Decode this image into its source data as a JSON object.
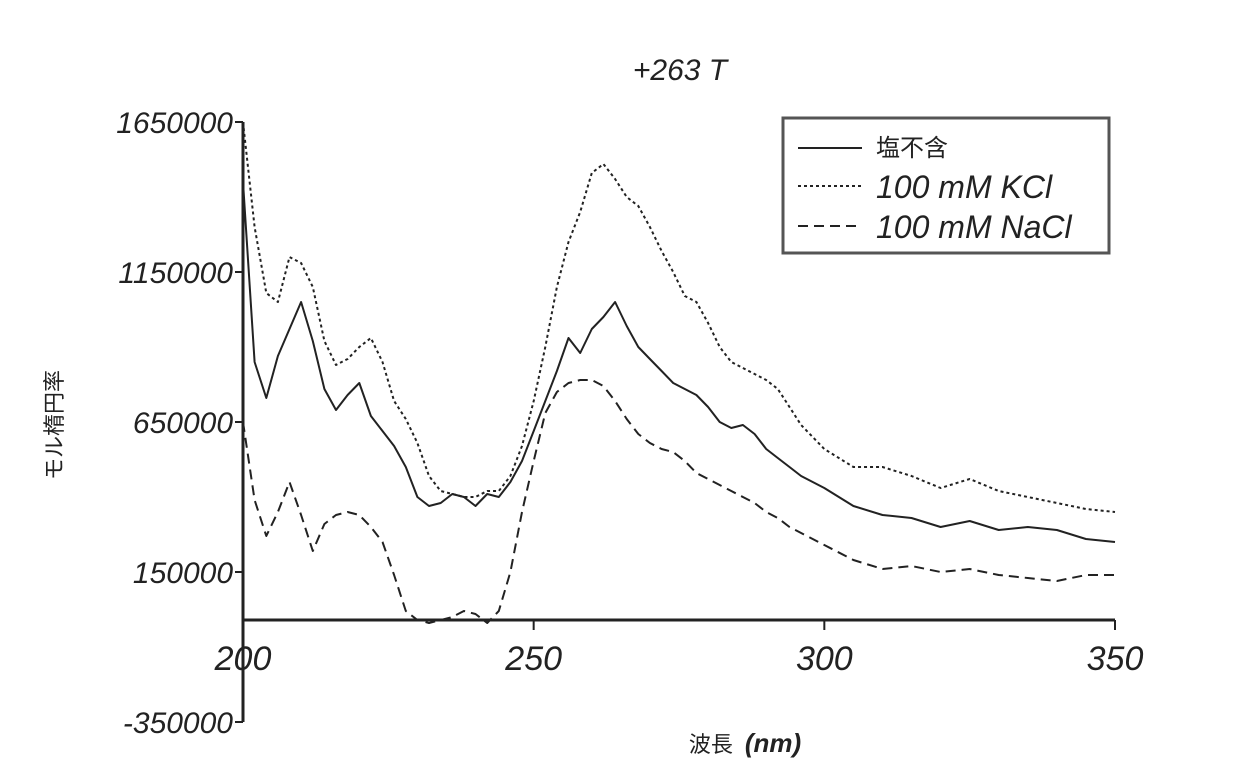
{
  "chart_data": {
    "type": "line",
    "title": "+263 T",
    "xlabel": "波長",
    "xlabel_unit": "(nm)",
    "ylabel": "モル楕円率",
    "xlim": [
      200,
      350
    ],
    "ylim": [
      -350000,
      1650000
    ],
    "x_ticks": [
      200,
      250,
      300,
      350
    ],
    "x_tick_labels": [
      "200",
      "250",
      "300",
      "350"
    ],
    "y_ticks": [
      1650000,
      1150000,
      650000,
      150000,
      -350000
    ],
    "y_tick_labels": [
      "1650000",
      "1150000",
      "650000",
      "150000",
      "-350000"
    ],
    "grid": false,
    "legend_position": "top-right",
    "colors": {
      "line": "#222222",
      "legend_border": "#555555"
    },
    "series": [
      {
        "name": "塩不含",
        "style": "solid",
        "x": [
          200,
          202,
          204,
          206,
          208,
          210,
          212,
          214,
          216,
          218,
          220,
          222,
          224,
          226,
          228,
          230,
          232,
          234,
          236,
          238,
          240,
          242,
          244,
          246,
          248,
          250,
          252,
          254,
          256,
          258,
          260,
          262,
          264,
          266,
          268,
          270,
          272,
          274,
          276,
          278,
          280,
          282,
          284,
          286,
          288,
          290,
          292,
          294,
          296,
          298,
          300,
          305,
          310,
          315,
          320,
          325,
          330,
          335,
          340,
          345,
          350
        ],
        "y": [
          1450000,
          850000,
          730000,
          870000,
          960000,
          1050000,
          920000,
          760000,
          690000,
          740000,
          780000,
          670000,
          620000,
          570000,
          500000,
          400000,
          370000,
          380000,
          410000,
          400000,
          370000,
          410000,
          400000,
          450000,
          520000,
          620000,
          720000,
          820000,
          930000,
          880000,
          960000,
          1000000,
          1050000,
          970000,
          900000,
          860000,
          820000,
          780000,
          760000,
          740000,
          700000,
          650000,
          630000,
          640000,
          610000,
          560000,
          530000,
          500000,
          470000,
          450000,
          430000,
          370000,
          340000,
          330000,
          300000,
          320000,
          290000,
          300000,
          290000,
          260000,
          250000
        ]
      },
      {
        "name": "100 mM KCl",
        "style": "dotted",
        "x": [
          200,
          202,
          204,
          206,
          208,
          210,
          212,
          214,
          216,
          218,
          220,
          222,
          224,
          226,
          228,
          230,
          232,
          234,
          236,
          238,
          240,
          242,
          244,
          246,
          248,
          250,
          252,
          254,
          256,
          258,
          260,
          262,
          264,
          266,
          268,
          270,
          272,
          274,
          276,
          278,
          280,
          282,
          284,
          286,
          288,
          290,
          292,
          294,
          296,
          298,
          300,
          305,
          310,
          315,
          320,
          325,
          330,
          335,
          340,
          345,
          350
        ],
        "y": [
          1650000,
          1300000,
          1080000,
          1050000,
          1200000,
          1180000,
          1100000,
          920000,
          840000,
          860000,
          900000,
          930000,
          850000,
          720000,
          660000,
          580000,
          470000,
          420000,
          410000,
          400000,
          400000,
          420000,
          420000,
          470000,
          570000,
          720000,
          900000,
          1100000,
          1250000,
          1350000,
          1480000,
          1510000,
          1460000,
          1400000,
          1370000,
          1300000,
          1220000,
          1150000,
          1070000,
          1050000,
          980000,
          900000,
          850000,
          830000,
          810000,
          790000,
          760000,
          700000,
          640000,
          600000,
          560000,
          500000,
          500000,
          470000,
          430000,
          460000,
          420000,
          400000,
          380000,
          360000,
          350000
        ]
      },
      {
        "name": "100 mM NaCl",
        "style": "dashed",
        "x": [
          200,
          202,
          204,
          206,
          208,
          210,
          212,
          214,
          216,
          218,
          220,
          222,
          224,
          226,
          228,
          230,
          232,
          234,
          236,
          238,
          240,
          242,
          244,
          246,
          248,
          250,
          252,
          254,
          256,
          258,
          260,
          262,
          264,
          266,
          268,
          270,
          272,
          274,
          276,
          278,
          280,
          282,
          284,
          286,
          288,
          290,
          292,
          294,
          296,
          298,
          300,
          305,
          310,
          315,
          320,
          325,
          330,
          335,
          340,
          345,
          350
        ],
        "y": [
          650000,
          390000,
          270000,
          350000,
          450000,
          340000,
          220000,
          310000,
          340000,
          350000,
          340000,
          300000,
          250000,
          140000,
          20000,
          -10000,
          -20000,
          -10000,
          0,
          20000,
          10000,
          -20000,
          20000,
          150000,
          350000,
          520000,
          680000,
          750000,
          780000,
          790000,
          790000,
          770000,
          720000,
          660000,
          610000,
          580000,
          560000,
          550000,
          520000,
          480000,
          460000,
          440000,
          420000,
          400000,
          380000,
          350000,
          330000,
          300000,
          280000,
          260000,
          240000,
          190000,
          160000,
          170000,
          150000,
          160000,
          140000,
          130000,
          120000,
          140000,
          140000
        ]
      }
    ]
  }
}
